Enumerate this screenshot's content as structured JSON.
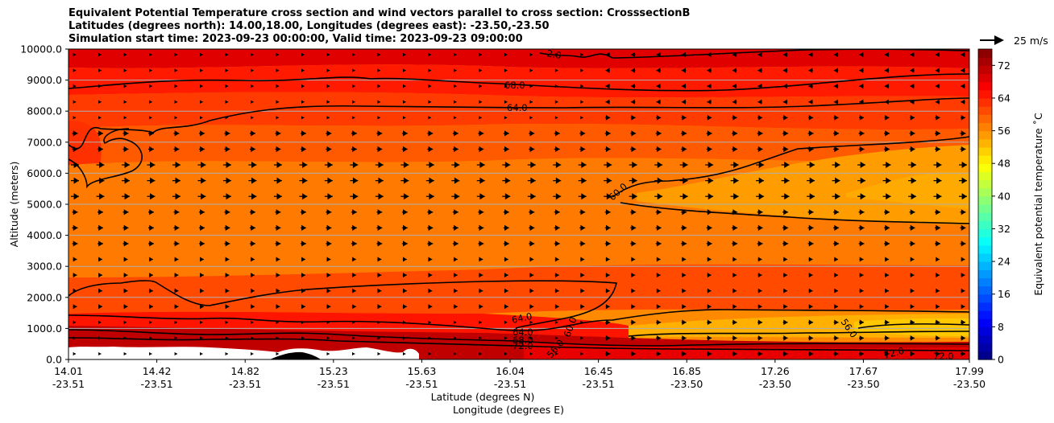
{
  "chart_data": {
    "type": "heatmap",
    "title_lines": [
      "Equivalent Potential Temperature cross section and wind vectors parallel to cross section: CrosssectionB",
      "Latitudes (degrees north): 14.00,18.00, Longitudes (degrees east): -23.50,-23.50",
      "Simulation start time: 2023-09-23 00:00:00, Valid time: 2023-09-23 09:00:00"
    ],
    "xlabel": "Latitude (degrees N)",
    "xlabel2": "Longitude (degrees E)",
    "ylabel": "Altitude (meters)",
    "ylim": [
      0,
      10000
    ],
    "y_ticks": [
      "0.0",
      "1000.0",
      "2000.0",
      "3000.0",
      "4000.0",
      "5000.0",
      "6000.0",
      "7000.0",
      "8000.0",
      "9000.0",
      "10000.0"
    ],
    "x_ticks": [
      {
        "lat": "14.01",
        "lon": "-23.51"
      },
      {
        "lat": "14.42",
        "lon": "-23.51"
      },
      {
        "lat": "14.82",
        "lon": "-23.51"
      },
      {
        "lat": "15.23",
        "lon": "-23.51"
      },
      {
        "lat": "15.63",
        "lon": "-23.51"
      },
      {
        "lat": "16.04",
        "lon": "-23.51"
      },
      {
        "lat": "16.45",
        "lon": "-23.51"
      },
      {
        "lat": "16.85",
        "lon": "-23.50"
      },
      {
        "lat": "17.26",
        "lon": "-23.50"
      },
      {
        "lat": "17.67",
        "lon": "-23.50"
      },
      {
        "lat": "17.99",
        "lon": "-23.50"
      }
    ],
    "grid": "horizontal",
    "colorbar": {
      "label": "Equivalent potential temperature $^\\circ$C",
      "label_text": "Equivalent potential temperature ˚C",
      "range": [
        0,
        76
      ],
      "ticks": [
        "0",
        "8",
        "16",
        "24",
        "32",
        "40",
        "48",
        "56",
        "64",
        "72"
      ],
      "colormap": "jet"
    },
    "contour_labels": [
      "2.0",
      "68.0",
      "64.0",
      "60.0",
      "64.0",
      "64.0",
      "68.0",
      "72.0",
      "56.0",
      "72.0",
      "72.0",
      "60.0",
      "56.0"
    ],
    "quiver_key": {
      "label": "25 m/s"
    }
  }
}
